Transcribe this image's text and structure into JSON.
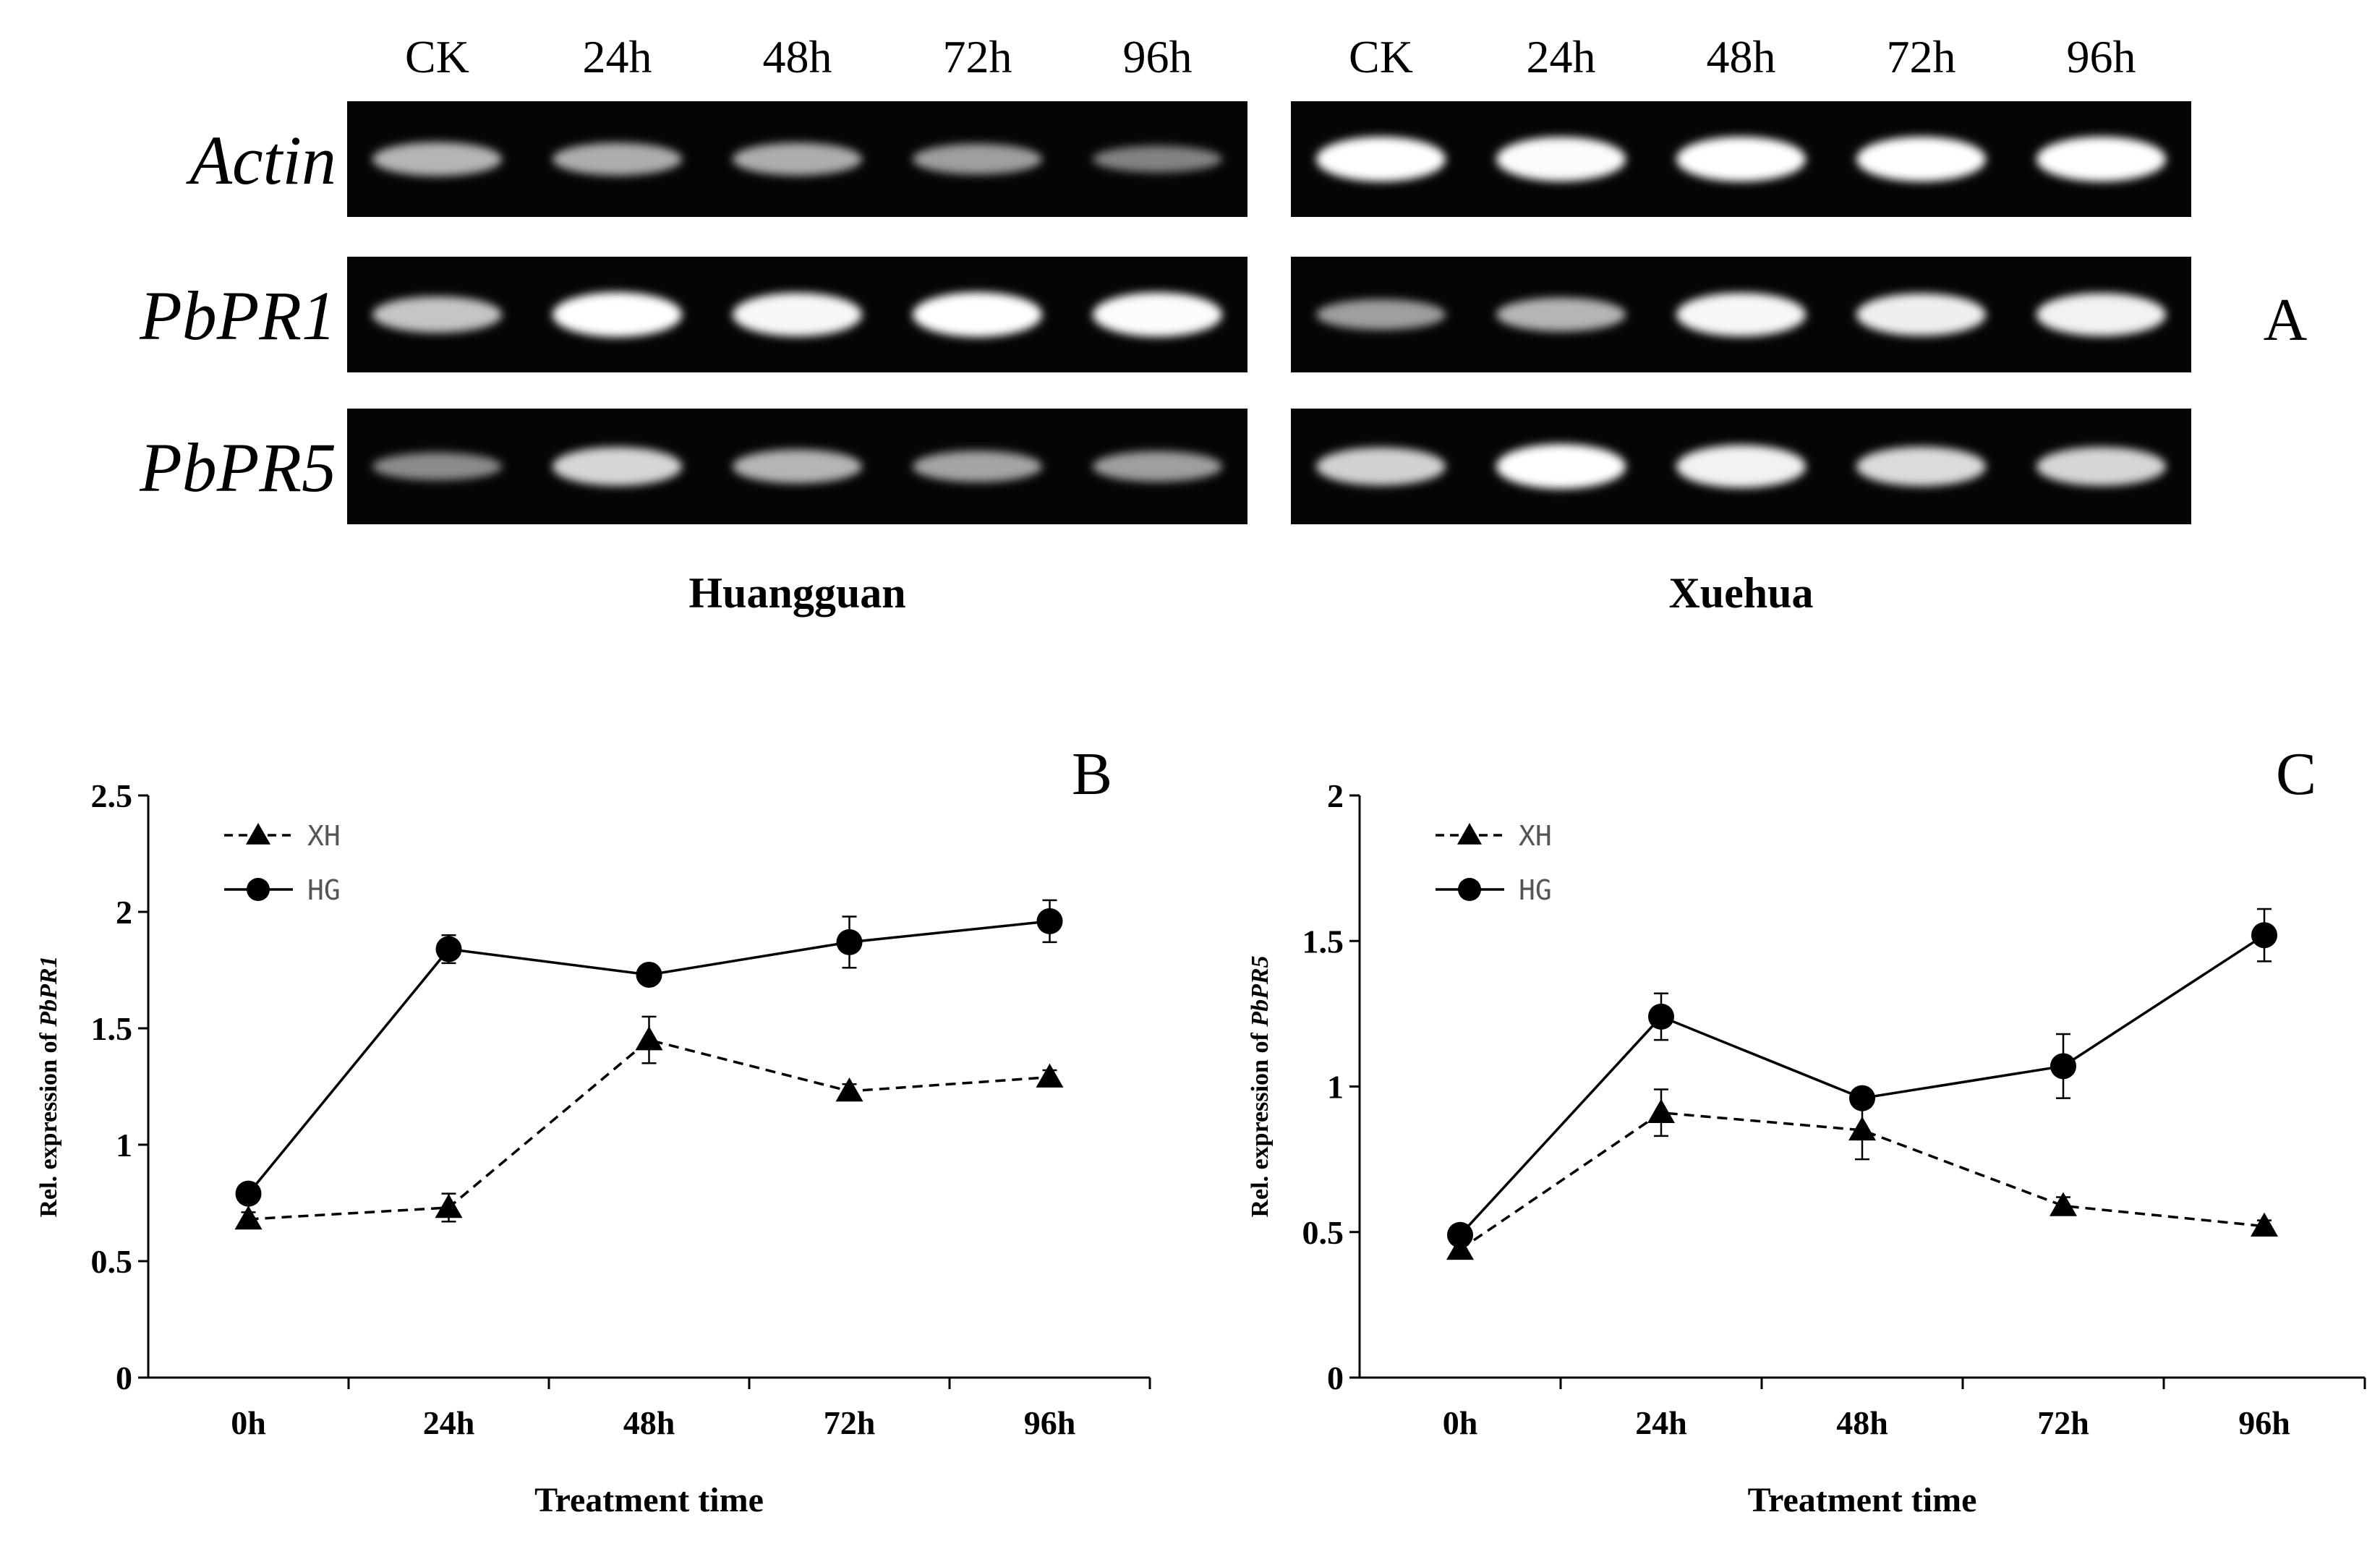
{
  "panel_a": {
    "letter": "A",
    "lanes": [
      "CK",
      "24h",
      "48h",
      "72h",
      "96h"
    ],
    "genes": [
      "Actin",
      "PbPR1",
      "PbPR5"
    ],
    "cultivars": [
      {
        "name": "Huangguan",
        "intensity": {
          "Actin": [
            0.55,
            0.5,
            0.5,
            0.42,
            0.25
          ],
          "PbPR1": [
            0.65,
            1.0,
            0.95,
            1.0,
            0.98
          ],
          "PbPR5": [
            0.3,
            0.75,
            0.55,
            0.45,
            0.42
          ]
        }
      },
      {
        "name": "Xuehua",
        "intensity": {
          "Actin": [
            1.0,
            0.98,
            1.0,
            1.0,
            1.0
          ],
          "PbPR1": [
            0.42,
            0.55,
            0.95,
            0.9,
            0.92
          ],
          "PbPR5": [
            0.72,
            1.0,
            0.92,
            0.78,
            0.75
          ]
        }
      }
    ]
  },
  "chart_data": [
    {
      "panel": "B",
      "type": "line",
      "categories": [
        "0h",
        "24h",
        "48h",
        "72h",
        "96h"
      ],
      "xlabel": "Treatment time",
      "ylabel_prefix": "Rel. expression of ",
      "ylabel_gene": "PbPR1",
      "ylim": [
        0,
        2.5
      ],
      "yticks": [
        "0",
        "0.5",
        "1",
        "1.5",
        "2",
        "2.5"
      ],
      "legend_position": "top-left",
      "series": [
        {
          "name": "XH",
          "marker": "triangle",
          "dash": "dashed",
          "values": [
            0.68,
            0.73,
            1.45,
            1.23,
            1.29
          ],
          "errors": [
            0.03,
            0.06,
            0.1,
            0.03,
            0.03
          ]
        },
        {
          "name": "HG",
          "marker": "circle",
          "dash": "solid",
          "values": [
            0.79,
            1.84,
            1.73,
            1.87,
            1.96
          ],
          "errors": [
            0.03,
            0.06,
            0.03,
            0.11,
            0.09
          ]
        }
      ]
    },
    {
      "panel": "C",
      "type": "line",
      "categories": [
        "0h",
        "24h",
        "48h",
        "72h",
        "96h"
      ],
      "xlabel": "Treatment time",
      "ylabel_prefix": "Rel. expression of ",
      "ylabel_gene": "PbPR5",
      "ylim": [
        0,
        2
      ],
      "yticks": [
        "0",
        "0.5",
        "1",
        "1.5",
        "2"
      ],
      "legend_position": "top-left",
      "series": [
        {
          "name": "XH",
          "marker": "triangle",
          "dash": "dashed",
          "values": [
            0.44,
            0.91,
            0.85,
            0.59,
            0.52
          ],
          "errors": [
            0.03,
            0.08,
            0.1,
            0.03,
            0.02
          ]
        },
        {
          "name": "HG",
          "marker": "circle",
          "dash": "solid",
          "values": [
            0.49,
            1.24,
            0.96,
            1.07,
            1.52
          ],
          "errors": [
            0.02,
            0.08,
            0.02,
            0.11,
            0.09
          ]
        }
      ]
    }
  ]
}
